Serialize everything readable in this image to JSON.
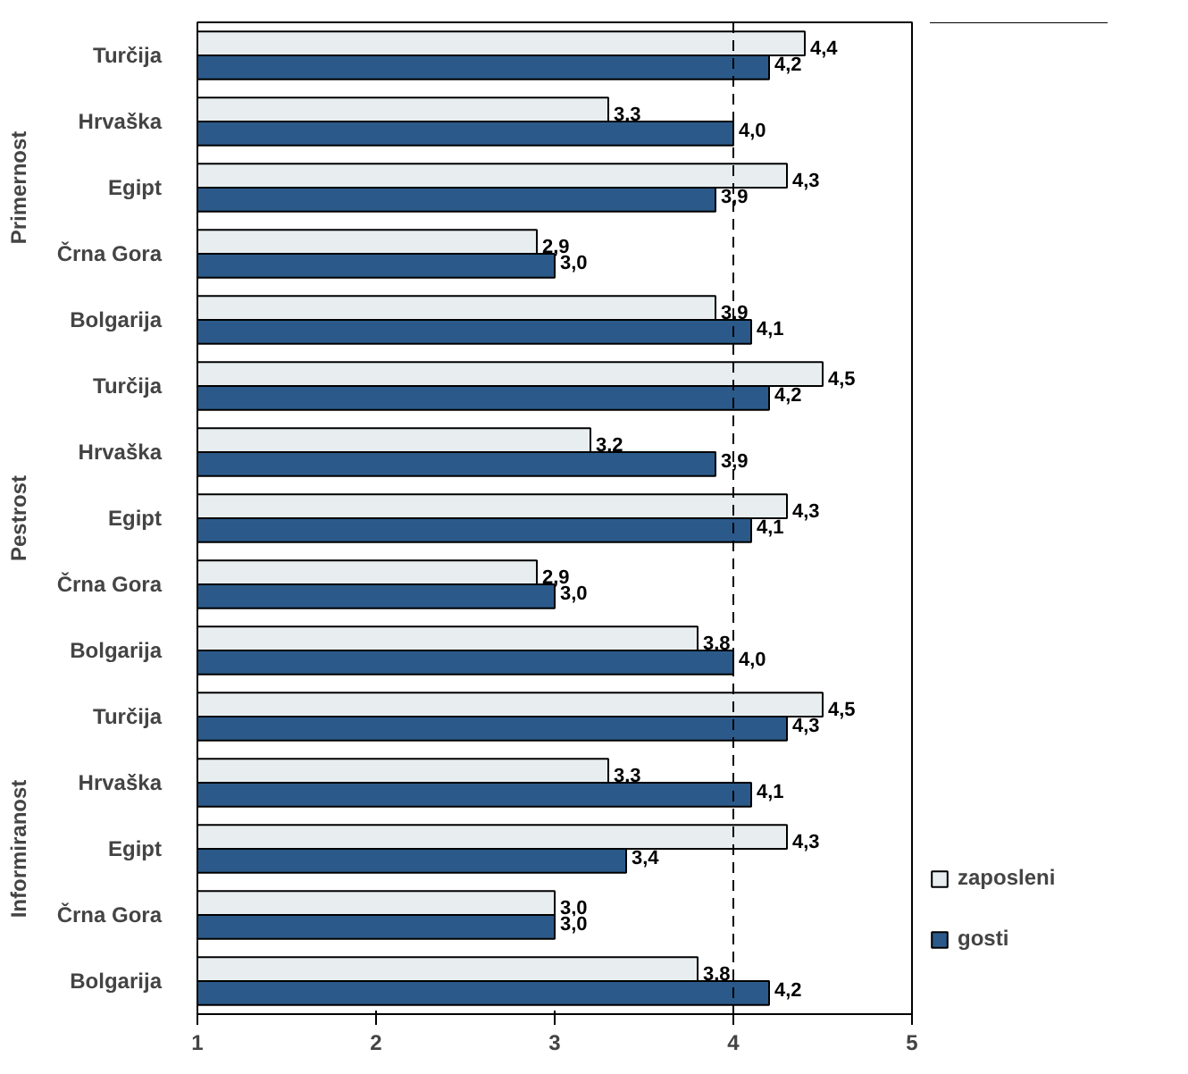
{
  "chart_data": {
    "type": "bar",
    "orientation": "horizontal",
    "categories": [
      "Turčija",
      "Hrvaška",
      "Egipt",
      "Črna Gora",
      "Bolgarija",
      "Turčija",
      "Hrvaška",
      "Egipt",
      "Črna Gora",
      "Bolgarija",
      "Turčija",
      "Hrvaška",
      "Egipt",
      "Črna Gora",
      "Bolgarija"
    ],
    "annotations": [
      "Primernost",
      "Pestrost",
      "Informiranost"
    ],
    "series": [
      {
        "name": "zaposleni",
        "color": "#e8eef0",
        "values": [
          4.4,
          3.3,
          4.3,
          2.9,
          3.9,
          4.5,
          3.2,
          4.3,
          2.9,
          3.8,
          4.5,
          3.3,
          4.3,
          3.0,
          3.8
        ],
        "value_labels": [
          "4,4",
          "3,3",
          "4,3",
          "2,9",
          "3,9",
          "4,5",
          "3,2",
          "4,3",
          "2,9",
          "3,8",
          "4,5",
          "3,3",
          "4,3",
          "3,0",
          "3,8"
        ]
      },
      {
        "name": "gosti",
        "color": "#2b5a8a",
        "values": [
          4.2,
          4.0,
          3.9,
          3.0,
          4.1,
          4.2,
          3.9,
          4.1,
          3.0,
          4.0,
          4.3,
          4.1,
          3.4,
          3.0,
          4.2
        ],
        "value_labels": [
          "4,2",
          "4,0",
          "3,9",
          "3,0",
          "4,1",
          "4,2",
          "3,9",
          "4,1",
          "3,0",
          "4,0",
          "4,3",
          "4,1",
          "3,4",
          "3,0",
          "4,2"
        ]
      }
    ],
    "xlim": [
      1,
      5
    ],
    "xticks": [
      1,
      2,
      3,
      4,
      5
    ],
    "ref_lines": [
      {
        "axis": "x",
        "value": 4,
        "line_style": "dashed",
        "color": "#000000"
      }
    ],
    "grid": false,
    "legend": "right"
  }
}
